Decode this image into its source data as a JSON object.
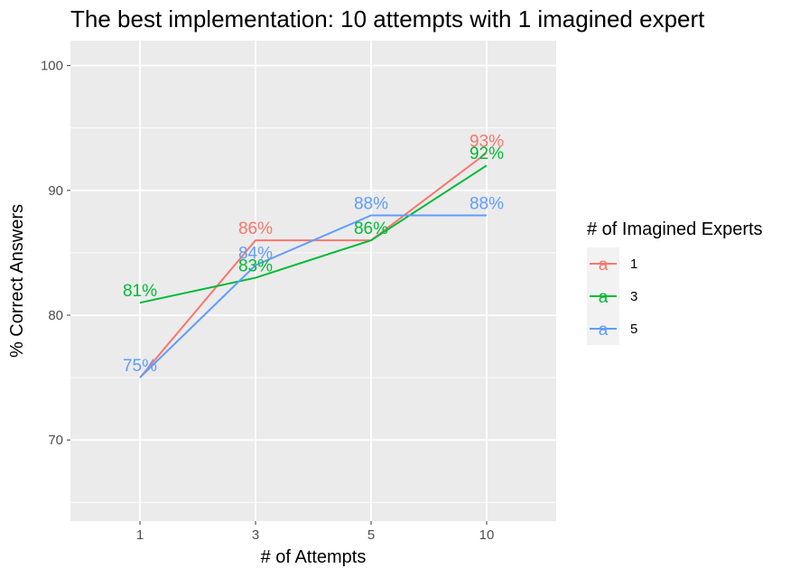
{
  "chart_data": {
    "type": "line",
    "title": "The best implementation: 10 attempts with 1 imagined expert",
    "xlabel": "# of Attempts",
    "ylabel": "% Correct Answers",
    "categories": [
      "1",
      "3",
      "5",
      "10"
    ],
    "y_ticks": [
      70,
      80,
      90,
      100
    ],
    "ylim": [
      63.5,
      102
    ],
    "grid": true,
    "legend": {
      "title": "# of Imagined Experts",
      "placement": "right",
      "key_glyph": "a"
    },
    "series": [
      {
        "name": "1",
        "color": "#F8766D",
        "values": [
          75,
          86,
          86,
          93
        ],
        "labels": [
          "",
          "86%",
          "",
          "93%"
        ]
      },
      {
        "name": "3",
        "color": "#00BA38",
        "values": [
          81,
          83,
          86,
          92
        ],
        "labels": [
          "81%",
          "83%",
          "86%",
          "92%"
        ]
      },
      {
        "name": "5",
        "color": "#619CFF",
        "values": [
          75,
          84,
          88,
          88
        ],
        "labels": [
          "75%",
          "84%",
          "88%",
          "88%"
        ]
      }
    ]
  }
}
